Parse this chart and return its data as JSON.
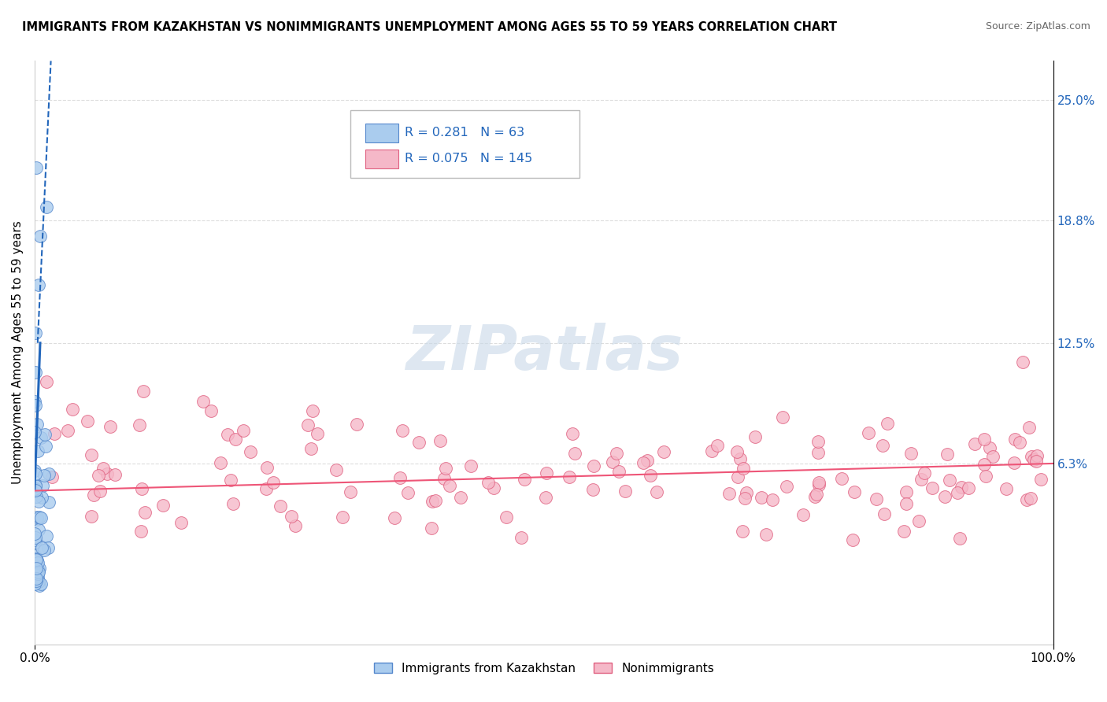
{
  "title": "IMMIGRANTS FROM KAZAKHSTAN VS NONIMMIGRANTS UNEMPLOYMENT AMONG AGES 55 TO 59 YEARS CORRELATION CHART",
  "source": "Source: ZipAtlas.com",
  "ylabel": "Unemployment Among Ages 55 to 59 years",
  "xlim": [
    0,
    100
  ],
  "ylim": [
    -3,
    27
  ],
  "y_tick_labels_right": [
    "6.3%",
    "12.5%",
    "18.8%",
    "25.0%"
  ],
  "y_tick_values_right": [
    6.3,
    12.5,
    18.8,
    25.0
  ],
  "legend_r_blue": "0.281",
  "legend_n_blue": "63",
  "legend_r_pink": "0.075",
  "legend_n_pink": "145",
  "blue_color": "#aaccee",
  "blue_edge_color": "#5588cc",
  "pink_color": "#f5b8c8",
  "pink_edge_color": "#e06080",
  "trend_blue_color": "#2266bb",
  "trend_pink_color": "#ee5577",
  "watermark": "ZIPatlas",
  "watermark_color": "#c8d8e8",
  "grid_color": "#dddddd",
  "background": "#ffffff"
}
